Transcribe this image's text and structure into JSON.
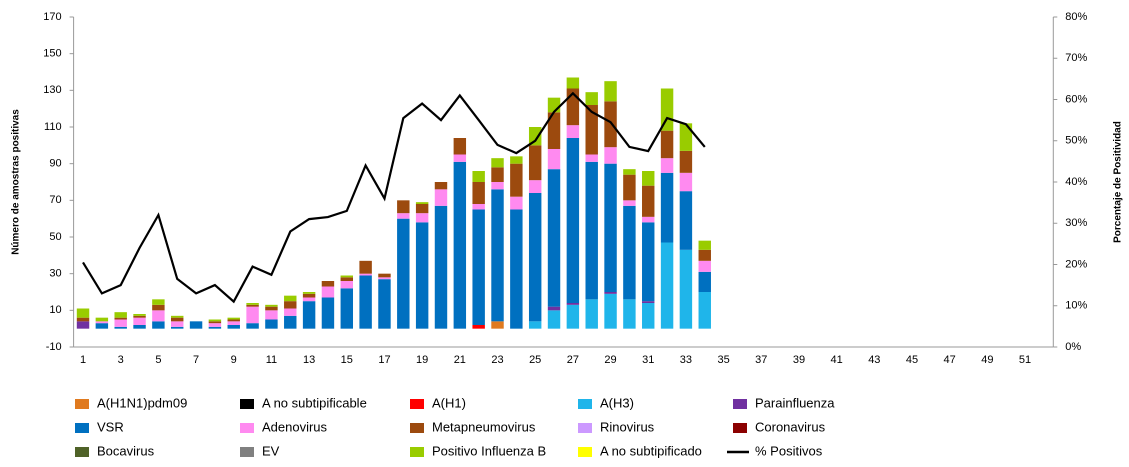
{
  "chart_data": {
    "type": "bar",
    "stacked": true,
    "grid": false,
    "y_label": "Número de amostras positivas",
    "y2_label": "Porcentaje de Positividad",
    "categories": [
      1,
      null,
      3,
      null,
      5,
      null,
      7,
      null,
      9,
      null,
      11,
      null,
      13,
      null,
      15,
      null,
      17,
      null,
      19,
      null,
      21,
      null,
      23,
      null,
      25,
      null,
      27,
      null,
      29,
      null,
      31,
      null,
      33,
      null,
      35,
      null,
      37,
      null,
      39,
      null,
      41,
      null,
      43,
      null,
      45,
      null,
      47,
      null,
      49,
      null,
      51,
      null
    ],
    "ylim": [
      -10,
      170
    ],
    "yticks": [
      -10,
      10,
      30,
      50,
      70,
      90,
      110,
      130,
      150,
      170
    ],
    "y2lim": [
      0,
      80
    ],
    "y2ticks": [
      {
        "value": 0,
        "label": "0%"
      },
      {
        "value": 10,
        "label": "10%"
      },
      {
        "value": 20,
        "label": "20%"
      },
      {
        "value": 30,
        "label": "30%"
      },
      {
        "value": 40,
        "label": "40%"
      },
      {
        "value": 50,
        "label": "50%"
      },
      {
        "value": 60,
        "label": "60%"
      },
      {
        "value": 70,
        "label": "70%"
      },
      {
        "value": 80,
        "label": "80%"
      }
    ],
    "series": [
      {
        "name": "A(H1N1)pdm09",
        "color": "#e07a1f",
        "values": [
          0,
          0,
          0,
          0,
          0,
          0,
          0,
          0,
          0,
          0,
          0,
          0,
          0,
          0,
          0,
          0,
          0,
          0,
          0,
          0,
          0,
          0,
          4,
          0,
          0,
          0,
          0,
          0,
          0,
          0,
          0,
          0,
          0,
          0,
          null,
          null,
          null,
          null,
          null,
          null,
          null,
          null,
          null,
          null,
          null,
          null,
          null,
          null,
          null,
          null,
          null,
          null
        ]
      },
      {
        "name": "A no subtipificable",
        "color": "#000000",
        "values": [
          0,
          0,
          0,
          0,
          0,
          0,
          0,
          0,
          0,
          0,
          0,
          0,
          0,
          0,
          0,
          0,
          0,
          0,
          0,
          0,
          0,
          0,
          0,
          0,
          0,
          0,
          0,
          0,
          0,
          0,
          0,
          0,
          0,
          0,
          null,
          null,
          null,
          null,
          null,
          null,
          null,
          null,
          null,
          null,
          null,
          null,
          null,
          null,
          null,
          null,
          null,
          null
        ]
      },
      {
        "name": "A(H1)",
        "color": "#ff0000",
        "values": [
          0,
          0,
          0,
          0,
          0,
          0,
          0,
          0,
          0,
          0,
          0,
          0,
          0,
          0,
          0,
          0,
          0,
          0,
          0,
          0,
          0,
          2,
          0,
          0,
          0,
          0,
          0,
          0,
          0,
          0,
          0,
          0,
          0,
          0,
          null,
          null,
          null,
          null,
          null,
          null,
          null,
          null,
          null,
          null,
          null,
          null,
          null,
          null,
          null,
          null,
          null,
          null
        ]
      },
      {
        "name": "A(H3)",
        "color": "#1fb5ea",
        "values": [
          0,
          0,
          0,
          0,
          0,
          0,
          0,
          0,
          0,
          0,
          0,
          0,
          0,
          0,
          0,
          0,
          0,
          0,
          0,
          0,
          0,
          0,
          0,
          0,
          4,
          10,
          13,
          16,
          19,
          16,
          14,
          47,
          43,
          20,
          null,
          null,
          null,
          null,
          null,
          null,
          null,
          null,
          null,
          null,
          null,
          null,
          null,
          null,
          null,
          null,
          null,
          null
        ]
      },
      {
        "name": "Parainfluenza",
        "color": "#7030a0",
        "values": [
          4,
          0,
          0,
          0,
          0,
          0,
          0,
          0,
          0,
          0,
          0,
          0,
          0,
          0,
          0,
          0,
          0,
          0,
          0,
          0,
          0,
          0,
          0,
          0,
          0,
          2,
          1,
          0,
          1,
          0,
          1,
          0,
          0,
          0,
          null,
          null,
          null,
          null,
          null,
          null,
          null,
          null,
          null,
          null,
          null,
          null,
          null,
          null,
          null,
          null,
          null,
          null
        ]
      },
      {
        "name": "VSR",
        "color": "#0070c0",
        "values": [
          0,
          3,
          1,
          2,
          4,
          1,
          4,
          1,
          2,
          3,
          5,
          7,
          15,
          17,
          22,
          29,
          27,
          60,
          58,
          67,
          91,
          63,
          72,
          65,
          70,
          75,
          90,
          75,
          70,
          51,
          43,
          38,
          32,
          11,
          null,
          null,
          null,
          null,
          null,
          null,
          null,
          null,
          null,
          null,
          null,
          null,
          null,
          null,
          null,
          null,
          null,
          null
        ]
      },
      {
        "name": "Adenovirus",
        "color": "#ff8af0",
        "values": [
          0,
          1,
          4,
          4,
          6,
          3,
          0,
          2,
          2,
          9,
          5,
          4,
          2,
          6,
          4,
          1,
          1,
          3,
          5,
          9,
          4,
          3,
          4,
          7,
          7,
          11,
          7,
          4,
          9,
          3,
          3,
          8,
          10,
          6,
          null,
          null,
          null,
          null,
          null,
          null,
          null,
          null,
          null,
          null,
          null,
          null,
          null,
          null,
          null,
          null,
          null,
          null
        ]
      },
      {
        "name": "Metapneumovirus",
        "color": "#9c4a0e",
        "values": [
          2,
          0,
          1,
          1,
          3,
          2,
          0,
          1,
          1,
          1,
          2,
          4,
          2,
          3,
          2,
          7,
          2,
          7,
          5,
          4,
          9,
          12,
          8,
          18,
          19,
          20,
          20,
          27,
          25,
          14,
          17,
          15,
          12,
          6,
          null,
          null,
          null,
          null,
          null,
          null,
          null,
          null,
          null,
          null,
          null,
          null,
          null,
          null,
          null,
          null,
          null,
          null
        ]
      },
      {
        "name": "Rinovirus",
        "color": "#cc99ff",
        "values": [
          0,
          0,
          0,
          0,
          0,
          0,
          0,
          0,
          0,
          0,
          0,
          0,
          0,
          0,
          0,
          0,
          0,
          0,
          0,
          0,
          0,
          0,
          0,
          0,
          0,
          0,
          0,
          0,
          0,
          0,
          0,
          0,
          0,
          0,
          null,
          null,
          null,
          null,
          null,
          null,
          null,
          null,
          null,
          null,
          null,
          null,
          null,
          null,
          null,
          null,
          null,
          null
        ]
      },
      {
        "name": "Coronavirus",
        "color": "#8b0000",
        "values": [
          0,
          0,
          0,
          0,
          0,
          0,
          0,
          0,
          0,
          0,
          0,
          0,
          0,
          0,
          0,
          0,
          0,
          0,
          0,
          0,
          0,
          0,
          0,
          0,
          0,
          0,
          0,
          0,
          0,
          0,
          0,
          0,
          0,
          0,
          null,
          null,
          null,
          null,
          null,
          null,
          null,
          null,
          null,
          null,
          null,
          null,
          null,
          null,
          null,
          null,
          null,
          null
        ]
      },
      {
        "name": "Bocavirus",
        "color": "#4f6228",
        "values": [
          0,
          0,
          0,
          0,
          0,
          0,
          0,
          0,
          0,
          0,
          0,
          0,
          0,
          0,
          0,
          0,
          0,
          0,
          0,
          0,
          0,
          0,
          0,
          0,
          0,
          0,
          0,
          0,
          0,
          0,
          0,
          0,
          0,
          0,
          null,
          null,
          null,
          null,
          null,
          null,
          null,
          null,
          null,
          null,
          null,
          null,
          null,
          null,
          null,
          null,
          null,
          null
        ]
      },
      {
        "name": "EV",
        "color": "#808080",
        "values": [
          0,
          0,
          0,
          0,
          0,
          0,
          0,
          0,
          0,
          0,
          0,
          0,
          0,
          0,
          0,
          0,
          0,
          0,
          0,
          0,
          0,
          0,
          0,
          0,
          0,
          0,
          0,
          0,
          0,
          0,
          0,
          0,
          0,
          0,
          null,
          null,
          null,
          null,
          null,
          null,
          null,
          null,
          null,
          null,
          null,
          null,
          null,
          null,
          null,
          null,
          null,
          null
        ]
      },
      {
        "name": "Positivo Influenza  B",
        "color": "#99cc00",
        "values": [
          5,
          2,
          3,
          1,
          3,
          1,
          0,
          1,
          1,
          1,
          1,
          3,
          1,
          0,
          1,
          0,
          0,
          0,
          1,
          0,
          0,
          6,
          5,
          4,
          10,
          8,
          6,
          7,
          11,
          3,
          8,
          23,
          15,
          5,
          null,
          null,
          null,
          null,
          null,
          null,
          null,
          null,
          null,
          null,
          null,
          null,
          null,
          null,
          null,
          null,
          null,
          null
        ]
      },
      {
        "name": "A no subtipificado",
        "color": "#ffff00",
        "values": [
          0,
          0,
          0,
          0,
          0,
          0,
          0,
          0,
          0,
          0,
          0,
          0,
          0,
          0,
          0,
          0,
          0,
          0,
          0,
          0,
          0,
          0,
          0,
          0,
          0,
          0,
          0,
          0,
          0,
          0,
          0,
          0,
          0,
          0,
          null,
          null,
          null,
          null,
          null,
          null,
          null,
          null,
          null,
          null,
          null,
          null,
          null,
          null,
          null,
          null,
          null,
          null
        ]
      },
      {
        "name": "% Positivos",
        "color": "#000000",
        "type": "line",
        "axis": "y2",
        "values": [
          20.5,
          13,
          15,
          24,
          32,
          16.5,
          13,
          15,
          11,
          19.5,
          17.5,
          28,
          31,
          31.5,
          33,
          44,
          36,
          55.5,
          59,
          55,
          61,
          55,
          49,
          47,
          50,
          57,
          61.5,
          57,
          54.5,
          48.5,
          47.5,
          55.5,
          54,
          48.5,
          null,
          null,
          null,
          null,
          null,
          null,
          null,
          null,
          null,
          null,
          null,
          null,
          null,
          null,
          null,
          null,
          null,
          null
        ]
      }
    ]
  }
}
